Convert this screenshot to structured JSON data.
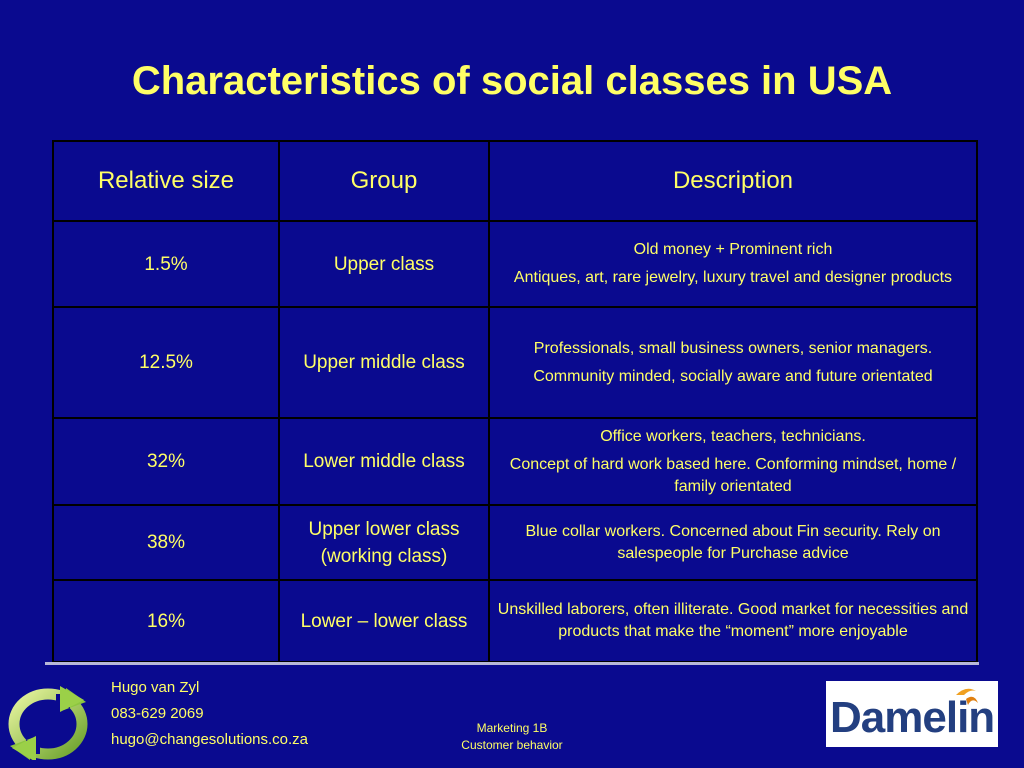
{
  "slide": {
    "title": "Characteristics of social classes in USA"
  },
  "table": {
    "headers": [
      "Relative size",
      "Group",
      "Description"
    ],
    "rows": [
      {
        "size": "1.5%",
        "group": "Upper class",
        "desc1": "Old money + Prominent rich",
        "desc2": "Antiques, art, rare jewelry, luxury travel and designer products"
      },
      {
        "size": "12.5%",
        "group": "Upper middle class",
        "desc1": "Professionals, small business owners, senior managers.",
        "desc2": "Community minded, socially aware and future orientated"
      },
      {
        "size": "32%",
        "group": "Lower middle class",
        "desc1": "Office workers, teachers, technicians.",
        "desc2": "Concept of hard work based here. Conforming mindset, home / family orientated"
      },
      {
        "size": "38%",
        "group": "Upper lower class (working class)",
        "desc1": "Blue collar workers. Concerned about Fin security. Rely on salespeople for Purchase advice"
      },
      {
        "size": "16%",
        "group": "Lower – lower class",
        "desc1": "Unskilled laborers, often illiterate. Good market for necessities and products that make the “moment” more enjoyable"
      }
    ]
  },
  "footer": {
    "contact_name": "Hugo van Zyl",
    "contact_phone": "083-629 2069",
    "contact_email": "hugo@changesolutions.co.za",
    "course": "Marketing 1B",
    "topic": "Customer behavior",
    "logo_text": "Damelin"
  },
  "colors": {
    "background": "#0a0a8f",
    "text": "#ffff66",
    "table_border": "#000000"
  },
  "icons": {
    "recycle": "recycle-arrows-icon",
    "brand": "damelin-logo"
  }
}
